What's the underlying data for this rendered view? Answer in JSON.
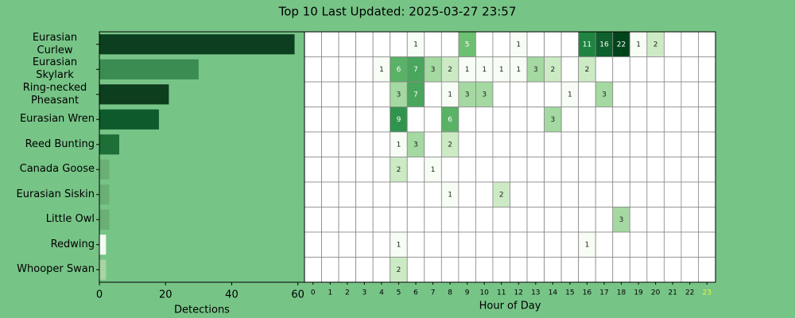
{
  "title": "Top 10 Last Updated: 2025-03-27 23:57",
  "chart_data": [
    {
      "type": "barh",
      "categories": [
        "Eurasian Curlew",
        "Eurasian Skylark",
        "Ring-necked Pheasant",
        "Eurasian Wren",
        "Reed Bunting",
        "Canada Goose",
        "Eurasian Siskin",
        "Little Owl",
        "Redwing",
        "Whooper Swan"
      ],
      "values": [
        59,
        30,
        21,
        18,
        6,
        3,
        3,
        3,
        2,
        2
      ],
      "colors": [
        "#0b3f1f",
        "#3a8c53",
        "#0d3e1e",
        "#0e5a2c",
        "#1e6e38",
        "#6aaf74",
        "#6aaf74",
        "#6aaf74",
        "#f4fbf2",
        "#a9d5a3"
      ],
      "xlabel": "Detections",
      "xlim": [
        0,
        62
      ],
      "xticks": [
        0,
        20,
        40,
        60
      ]
    },
    {
      "type": "heatmap",
      "x": [
        0,
        1,
        2,
        3,
        4,
        5,
        6,
        7,
        8,
        9,
        10,
        11,
        12,
        13,
        14,
        15,
        16,
        17,
        18,
        19,
        20,
        21,
        22,
        23
      ],
      "xlabel": "Hour of Day",
      "matrix": [
        [
          null,
          null,
          null,
          null,
          null,
          null,
          1,
          null,
          null,
          5,
          null,
          null,
          1,
          null,
          null,
          null,
          11,
          16,
          22,
          1,
          2,
          null,
          null,
          null
        ],
        [
          null,
          null,
          null,
          null,
          1,
          6,
          7,
          3,
          2,
          1,
          1,
          1,
          1,
          3,
          2,
          null,
          2,
          null,
          null,
          null,
          null,
          null,
          null,
          null
        ],
        [
          null,
          null,
          null,
          null,
          null,
          3,
          7,
          null,
          1,
          3,
          3,
          null,
          null,
          null,
          null,
          1,
          null,
          3,
          null,
          null,
          null,
          null,
          null,
          null
        ],
        [
          null,
          null,
          null,
          null,
          null,
          9,
          null,
          null,
          6,
          null,
          null,
          null,
          null,
          null,
          3,
          null,
          null,
          null,
          null,
          null,
          null,
          null,
          null,
          null
        ],
        [
          null,
          null,
          null,
          null,
          null,
          1,
          3,
          null,
          2,
          null,
          null,
          null,
          null,
          null,
          null,
          null,
          null,
          null,
          null,
          null,
          null,
          null,
          null,
          null
        ],
        [
          null,
          null,
          null,
          null,
          null,
          2,
          null,
          1,
          null,
          null,
          null,
          null,
          null,
          null,
          null,
          null,
          null,
          null,
          null,
          null,
          null,
          null,
          null,
          null
        ],
        [
          null,
          null,
          null,
          null,
          null,
          null,
          null,
          null,
          1,
          null,
          null,
          2,
          null,
          null,
          null,
          null,
          null,
          null,
          null,
          null,
          null,
          null,
          null,
          null
        ],
        [
          null,
          null,
          null,
          null,
          null,
          null,
          null,
          null,
          null,
          null,
          null,
          null,
          null,
          null,
          null,
          null,
          null,
          null,
          3,
          null,
          null,
          null,
          null,
          null
        ],
        [
          null,
          null,
          null,
          null,
          null,
          1,
          null,
          null,
          null,
          null,
          null,
          null,
          null,
          null,
          null,
          null,
          1,
          null,
          null,
          null,
          null,
          null,
          null,
          null
        ],
        [
          null,
          null,
          null,
          null,
          null,
          2,
          null,
          null,
          null,
          null,
          null,
          null,
          null,
          null,
          null,
          null,
          null,
          null,
          null,
          null,
          null,
          null,
          null,
          null
        ]
      ],
      "colormap": [
        "#f7fcf5",
        "#c7e9c0",
        "#74c476",
        "#238b45",
        "#00441b"
      ],
      "color_scale": "log",
      "highlight_x": 23,
      "highlight_color": "#e8f53c"
    }
  ]
}
